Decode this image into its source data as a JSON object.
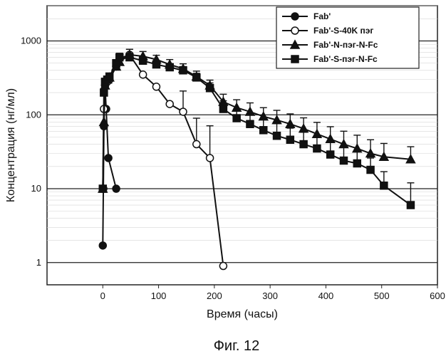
{
  "chart_data": {
    "type": "line",
    "title": "",
    "xlabel": "Время (часы)",
    "ylabel": "Концентрация (нг/мл)",
    "caption": "Фиг. 12",
    "xlim": [
      -100,
      600
    ],
    "ylim": [
      0.5,
      3000
    ],
    "yscale": "log",
    "xticks": [
      0,
      100,
      200,
      300,
      400,
      500,
      600
    ],
    "xtick_labels": [
      "0",
      "100",
      "200",
      "300",
      "400",
      "500",
      "600"
    ],
    "yticks": [
      1,
      10,
      100,
      1000
    ],
    "ytick_labels": [
      "1",
      "10",
      "100",
      "1000"
    ],
    "grid": "horizontal",
    "legend_position": "top-right",
    "series": [
      {
        "name": "Fab'",
        "marker": "circle-filled",
        "x": [
          0,
          1,
          2,
          4,
          6,
          10,
          24
        ],
        "y": [
          1.7,
          10,
          70,
          250,
          120,
          26,
          10
        ],
        "err": [
          0,
          0,
          0,
          0,
          0,
          0,
          0
        ]
      },
      {
        "name": "Fab'-S-40K пэг",
        "marker": "circle-open",
        "x": [
          0,
          2,
          4,
          8,
          12,
          24,
          30,
          48,
          72,
          96,
          120,
          144,
          168,
          192,
          216
        ],
        "y": [
          10,
          120,
          250,
          280,
          300,
          450,
          580,
          650,
          350,
          240,
          140,
          110,
          40,
          26,
          0.9
        ],
        "err": [
          0,
          0,
          0,
          0,
          0,
          100,
          100,
          120,
          0,
          0,
          0,
          100,
          50,
          45,
          0
        ]
      },
      {
        "name": "Fab'-N-пэг-N-Fc",
        "marker": "triangle-filled",
        "x": [
          0,
          2,
          4,
          8,
          12,
          24,
          30,
          48,
          72,
          96,
          120,
          144,
          168,
          192,
          216,
          240,
          264,
          288,
          312,
          336,
          360,
          384,
          408,
          432,
          456,
          480,
          504,
          552
        ],
        "y": [
          10,
          80,
          250,
          300,
          320,
          450,
          520,
          650,
          620,
          560,
          480,
          420,
          330,
          250,
          150,
          125,
          110,
          95,
          85,
          75,
          65,
          55,
          47,
          40,
          35,
          30,
          27,
          25
        ],
        "err": [
          0,
          0,
          0,
          0,
          0,
          80,
          100,
          120,
          100,
          80,
          80,
          70,
          60,
          45,
          40,
          35,
          35,
          30,
          30,
          28,
          26,
          24,
          22,
          20,
          18,
          16,
          14,
          12
        ]
      },
      {
        "name": "Fab'-S-пэг-N-Fc",
        "marker": "square-filled",
        "x": [
          0,
          2,
          4,
          8,
          12,
          24,
          30,
          48,
          72,
          96,
          120,
          144,
          168,
          192,
          216,
          240,
          264,
          288,
          312,
          336,
          360,
          384,
          408,
          432,
          456,
          480,
          504,
          552
        ],
        "y": [
          10,
          200,
          280,
          300,
          330,
          500,
          600,
          600,
          540,
          480,
          440,
          400,
          320,
          230,
          120,
          90,
          75,
          62,
          52,
          46,
          40,
          35,
          29,
          24,
          22,
          18,
          11,
          6
        ],
        "err": [
          0,
          0,
          0,
          0,
          0,
          60,
          80,
          80,
          70,
          60,
          55,
          50,
          45,
          40,
          35,
          30,
          28,
          26,
          24,
          20,
          18,
          16,
          14,
          12,
          10,
          8,
          6,
          6
        ]
      }
    ]
  }
}
